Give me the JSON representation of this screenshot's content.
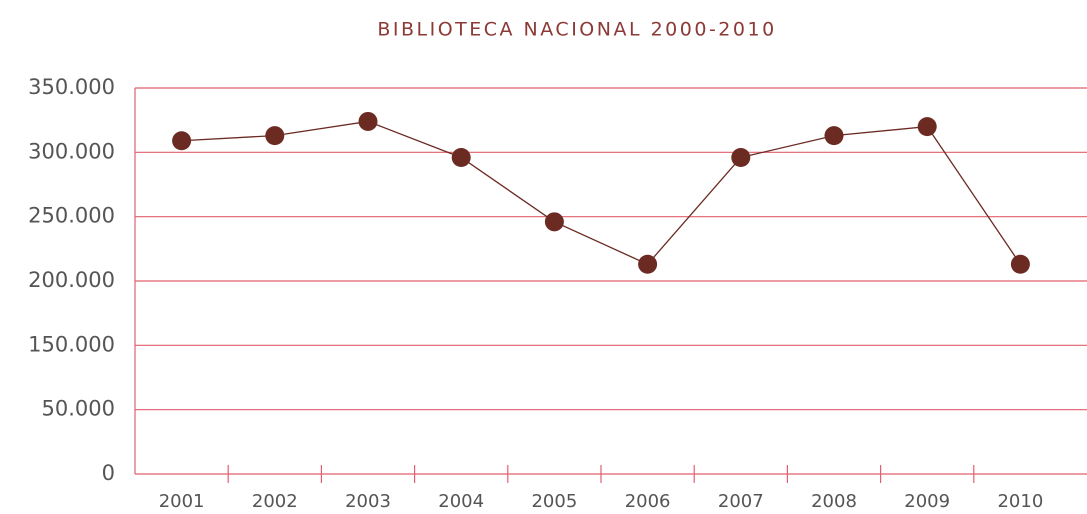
{
  "chart_data": {
    "type": "line",
    "title": "BIBLIOTECA NACIONAL 2000-2010",
    "categories": [
      "2001",
      "2002",
      "2003",
      "2004",
      "2005",
      "2006",
      "2007",
      "2008",
      "2009",
      "2010"
    ],
    "series": [
      {
        "name": "Biblioteca Nacional",
        "color": "#6b2a22",
        "values": [
          309000,
          313000,
          324000,
          296000,
          246000,
          213000,
          296000,
          313000,
          320000,
          213000
        ]
      }
    ],
    "ylim": [
      0,
      350000
    ],
    "yticks": [
      0,
      {
        "value": 50000,
        "label": "50.000"
      },
      {
        "value": 150000,
        "label": "150.000"
      },
      {
        "value": 200000,
        "label": "200.000"
      },
      {
        "value": 250000,
        "label": "250.000"
      },
      {
        "value": 300000,
        "label": "300.000"
      },
      {
        "value": 350000,
        "label": "350.000"
      }
    ],
    "grid": true,
    "grid_color": "#e0606e"
  }
}
